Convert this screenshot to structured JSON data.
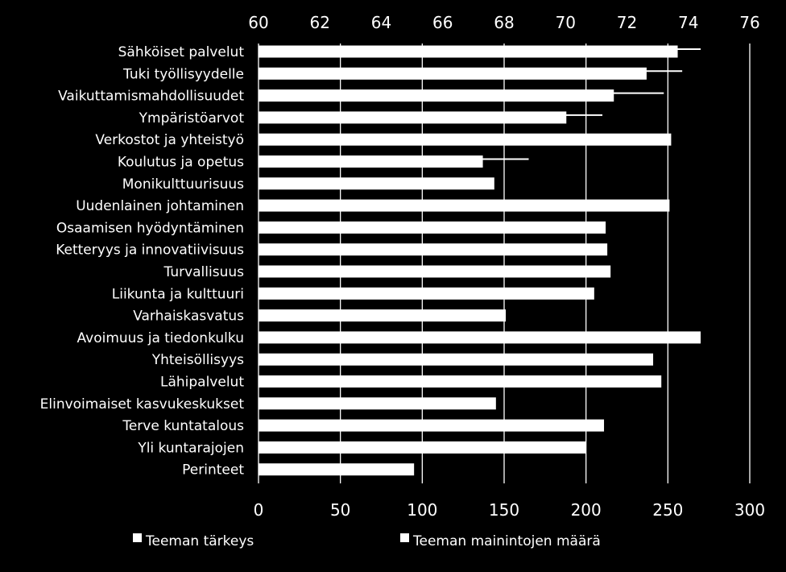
{
  "chart_data": {
    "type": "bar",
    "orientation": "horizontal",
    "categories": [
      "Sähköiset palvelut",
      "Tuki työllisyydelle",
      "Vaikuttamismahdollisuudet",
      "Ympäristöarvot",
      "Verkostot ja yhteistyö",
      "Koulutus ja opetus",
      "Monikulttuurisuus",
      "Uudenlainen johtaminen",
      "Osaamisen hyödyntäminen",
      "Ketteryys ja innovatiivisuus",
      "Turvallisuus",
      "Liikunta ja kulttuuri",
      "Varhaiskasvatus",
      "Avoimuus ja tiedonkulku",
      "Yhteisöllisyys",
      "Lähipalvelut",
      "Elinvoimaiset kasvukeskukset",
      "Terve kuntatalous",
      "Yli kuntarajojen",
      "Perinteet"
    ],
    "series": [
      {
        "name": "Teeman tärkeys",
        "axis": "top",
        "values": [
          74.4,
          73.8,
          73.2,
          71.2,
          null,
          68.8,
          null,
          null,
          null,
          null,
          null,
          null,
          null,
          null,
          null,
          null,
          null,
          null,
          null,
          null
        ]
      },
      {
        "name": "Teeman mainintojen määrä",
        "axis": "bottom",
        "values": [
          256,
          237,
          217,
          188,
          252,
          137,
          144,
          251,
          212,
          213,
          215,
          205,
          151,
          270,
          241,
          246,
          145,
          211,
          200,
          95
        ]
      }
    ],
    "top_axis": {
      "range": [
        60,
        76
      ],
      "ticks": [
        "60",
        "62",
        "64",
        "66",
        "68",
        "70",
        "72",
        "74",
        "76"
      ]
    },
    "bottom_axis": {
      "range": [
        0,
        300
      ],
      "ticks": [
        "0",
        "50",
        "100",
        "150",
        "200",
        "250",
        "300"
      ]
    },
    "grid": true,
    "legend_position": "bottom",
    "colors": {
      "background": "#000000",
      "bar": "#ffffff",
      "line": "#ffffff",
      "grid": "#ffffff",
      "text": "#ffffff"
    }
  }
}
